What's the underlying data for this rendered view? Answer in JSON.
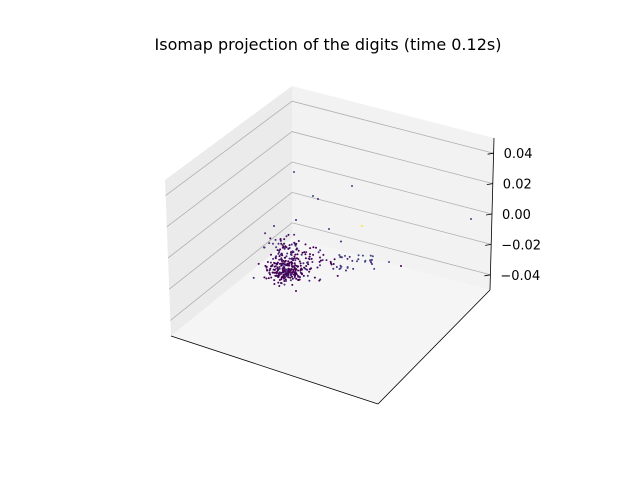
{
  "chart_data": {
    "type": "scatter",
    "projection": "3d",
    "title": "Isomap projection of the digits (time 0.12s)",
    "xlabel": "",
    "ylabel": "",
    "zlabel": "",
    "x_ticks_visible": false,
    "y_ticks_visible": false,
    "z_ticks": [
      "0.04",
      "0.02",
      "0.00",
      "−0.02",
      "−0.04"
    ],
    "zlim": [
      -0.05,
      0.05
    ],
    "grid": true,
    "colormap": "viridis",
    "colormap_stops": [
      "#440154",
      "#3b528b",
      "#21918c",
      "#5ec962",
      "#fde725"
    ],
    "pane_colors": {
      "left": "#ebebeb",
      "back": "#f2f2f2",
      "floor": "#f5f5f5"
    },
    "marker_size": 1
  }
}
